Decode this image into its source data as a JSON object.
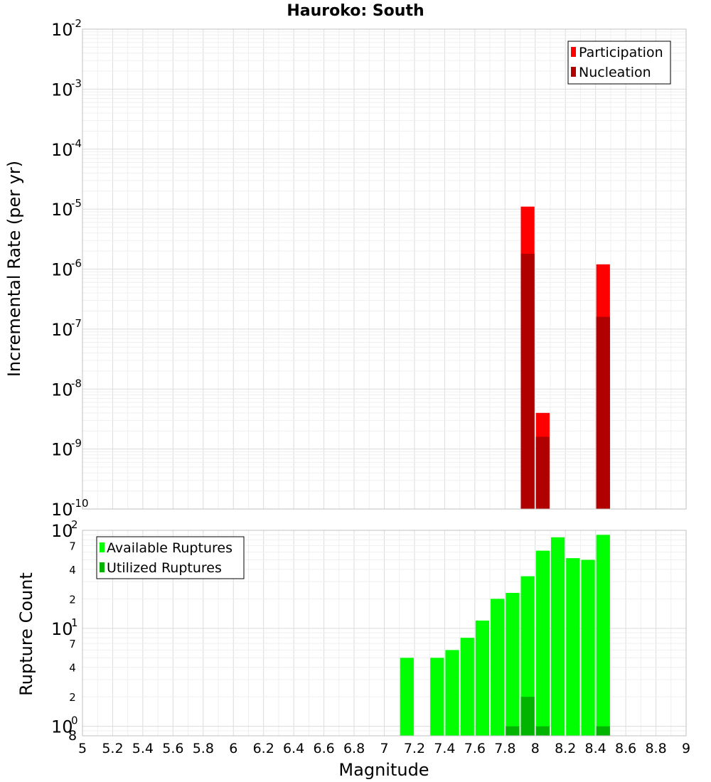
{
  "chart_data": [
    {
      "type": "bar",
      "title": "Hauroko: South",
      "xlabel": "",
      "ylabel": "Incremental Rate (per yr)",
      "xlim": [
        5,
        9
      ],
      "ylim": [
        1e-10,
        0.01
      ],
      "yscale": "log",
      "grid": true,
      "legend_position": "top-right",
      "series": [
        {
          "name": "Participation",
          "color": "#ff0000",
          "points": [
            {
              "x": 7.95,
              "y": 1.1e-05
            },
            {
              "x": 8.05,
              "y": 4e-09
            },
            {
              "x": 8.45,
              "y": 1.2e-06
            }
          ]
        },
        {
          "name": "Nucleation",
          "color": "#b00000",
          "points": [
            {
              "x": 7.95,
              "y": 1.8e-06
            },
            {
              "x": 8.05,
              "y": 1.6e-09
            },
            {
              "x": 8.45,
              "y": 1.6e-07
            }
          ]
        }
      ],
      "y_ticks": [
        {
          "base": "10",
          "exp": "-2",
          "value": 0.01
        },
        {
          "base": "10",
          "exp": "-3",
          "value": 0.001
        },
        {
          "base": "10",
          "exp": "-4",
          "value": 0.0001
        },
        {
          "base": "10",
          "exp": "-5",
          "value": 1e-05
        },
        {
          "base": "10",
          "exp": "-6",
          "value": 1e-06
        },
        {
          "base": "10",
          "exp": "-7",
          "value": 1e-07
        },
        {
          "base": "10",
          "exp": "-8",
          "value": 1e-08
        },
        {
          "base": "10",
          "exp": "-9",
          "value": 1e-09
        },
        {
          "base": "10",
          "exp": "-10",
          "value": 1e-10
        }
      ]
    },
    {
      "type": "bar",
      "title": "",
      "xlabel": "Magnitude",
      "ylabel": "Rupture Count",
      "xlim": [
        5,
        9
      ],
      "ylim": [
        0.8,
        100
      ],
      "yscale": "log",
      "grid": true,
      "legend_position": "top-left",
      "series": [
        {
          "name": "Available Ruptures",
          "color": "#00ff00",
          "points": [
            {
              "x": 7.15,
              "y": 5
            },
            {
              "x": 7.35,
              "y": 5
            },
            {
              "x": 7.45,
              "y": 6
            },
            {
              "x": 7.55,
              "y": 8
            },
            {
              "x": 7.65,
              "y": 12
            },
            {
              "x": 7.75,
              "y": 20
            },
            {
              "x": 7.85,
              "y": 23
            },
            {
              "x": 7.95,
              "y": 34
            },
            {
              "x": 8.05,
              "y": 62
            },
            {
              "x": 8.15,
              "y": 85
            },
            {
              "x": 8.25,
              "y": 52
            },
            {
              "x": 8.35,
              "y": 50
            },
            {
              "x": 8.45,
              "y": 90
            }
          ]
        },
        {
          "name": "Utilized Ruptures",
          "color": "#00b400",
          "points": [
            {
              "x": 7.85,
              "y": 1
            },
            {
              "x": 7.95,
              "y": 2
            },
            {
              "x": 8.05,
              "y": 1
            },
            {
              "x": 8.45,
              "y": 1
            }
          ]
        }
      ],
      "y_major_ticks": [
        {
          "base": "10",
          "exp": "2",
          "value": 100
        },
        {
          "base": "10",
          "exp": "1",
          "value": 10
        },
        {
          "base": "10",
          "exp": "0",
          "value": 1
        }
      ],
      "y_minor_ticks": [
        {
          "label": "7",
          "value": 70
        },
        {
          "label": "4",
          "value": 40
        },
        {
          "label": "2",
          "value": 20
        },
        {
          "label": "7",
          "value": 7
        },
        {
          "label": "4",
          "value": 4
        },
        {
          "label": "2",
          "value": 2
        },
        {
          "label": "8",
          "value": 0.8
        }
      ],
      "x_ticks": [
        "5",
        "5.2",
        "5.4",
        "5.6",
        "5.8",
        "6",
        "6.2",
        "6.4",
        "6.6",
        "6.8",
        "7",
        "7.2",
        "7.4",
        "7.6",
        "7.8",
        "8",
        "8.2",
        "8.4",
        "8.6",
        "8.8",
        "9"
      ]
    }
  ]
}
